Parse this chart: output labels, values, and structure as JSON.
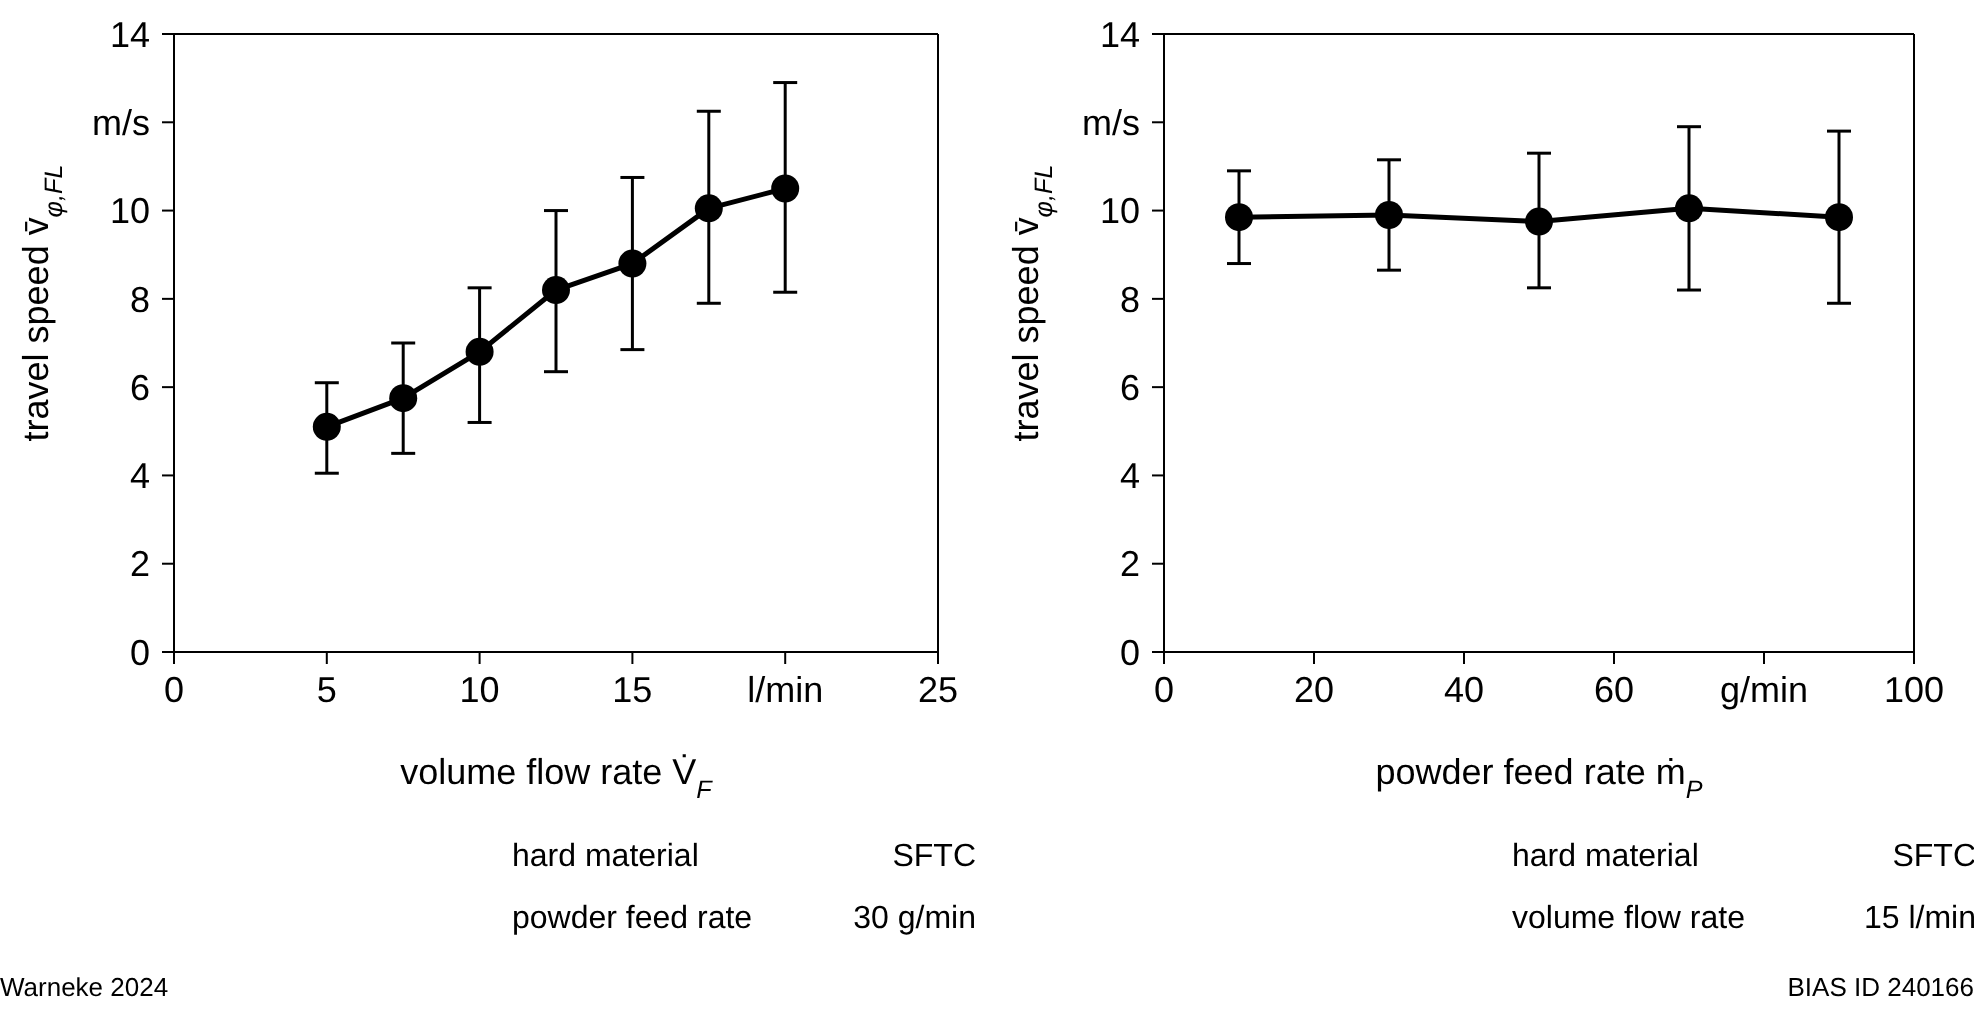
{
  "chart_data": [
    {
      "type": "line",
      "xlabel": "volume flow rate V̇$_{F}$",
      "ylabel": "travel speed  v̄$_{φ,FL}$",
      "x": [
        5,
        7.5,
        10,
        12.5,
        15,
        17.5,
        20
      ],
      "series": [
        {
          "color": "#000000",
          "values": [
            5.1,
            5.75,
            6.8,
            8.2,
            8.8,
            10.05,
            10.5
          ],
          "errors": [
            [
              4.05,
              6.1
            ],
            [
              4.5,
              7.0
            ],
            [
              5.2,
              8.25
            ],
            [
              6.35,
              10.0
            ],
            [
              6.85,
              10.75
            ],
            [
              7.9,
              12.25
            ],
            [
              8.15,
              12.9
            ]
          ]
        }
      ],
      "xlim": [
        0,
        25
      ],
      "xticks": [
        0,
        5,
        10,
        15,
        {
          "value": 20,
          "label": "l/min"
        },
        25
      ],
      "ylim": [
        0,
        14
      ],
      "yticks": [
        0,
        2,
        4,
        6,
        8,
        10,
        {
          "value": 12,
          "label": "m/s"
        },
        14
      ],
      "marker": "circle",
      "line_style": "solid",
      "annotations": [
        "hard material",
        "SFTC",
        "powder feed rate",
        "30 g/min",
        "Warneke 2024"
      ]
    },
    {
      "type": "line",
      "xlabel": "powder feed rate  ṁ$_{P}$",
      "ylabel": "travel speed  v̄$_{φ,FL}$",
      "x": [
        10,
        30,
        50,
        70,
        90
      ],
      "series": [
        {
          "color": "#000000",
          "values": [
            9.85,
            9.9,
            9.75,
            10.05,
            9.85
          ],
          "errors": [
            [
              8.8,
              10.9
            ],
            [
              8.65,
              11.15
            ],
            [
              8.25,
              11.3
            ],
            [
              8.2,
              11.9
            ],
            [
              7.9,
              11.8
            ]
          ]
        }
      ],
      "xlim": [
        0,
        100
      ],
      "xticks": [
        0,
        20,
        40,
        60,
        {
          "value": 80,
          "label": "g/min"
        },
        100
      ],
      "ylim": [
        0,
        14
      ],
      "yticks": [
        0,
        2,
        4,
        6,
        8,
        10,
        {
          "value": 12,
          "label": "m/s"
        },
        14
      ],
      "marker": "circle",
      "line_style": "solid",
      "annotations": [
        "hard material",
        "SFTC",
        "volume flow rate",
        "15 l/min",
        "BIAS ID 240166"
      ]
    }
  ]
}
